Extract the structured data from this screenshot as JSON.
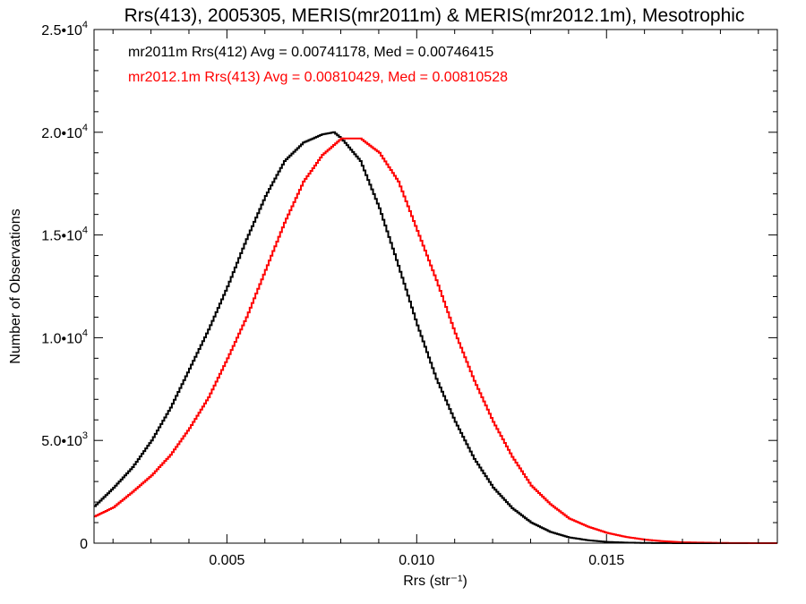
{
  "chart_data": {
    "type": "line",
    "title": "Rrs(413), 2005305, MERIS(mr2011m) & MERIS(mr2012.1m), Mesotrophic",
    "xlabel": "Rrs (str⁻¹)",
    "ylabel": "Number of Observations",
    "xlim": [
      0.0015,
      0.0195
    ],
    "ylim": [
      0,
      25000
    ],
    "x_ticks": [
      {
        "value": 0.005,
        "label": "0.005"
      },
      {
        "value": 0.01,
        "label": "0.010"
      },
      {
        "value": 0.015,
        "label": "0.015"
      }
    ],
    "y_ticks": [
      {
        "value": 0,
        "label": "0",
        "exp": ""
      },
      {
        "value": 5000,
        "label": "5.0•10",
        "exp": "3"
      },
      {
        "value": 10000,
        "label": "1.0•10",
        "exp": "4"
      },
      {
        "value": 15000,
        "label": "1.5•10",
        "exp": "4"
      },
      {
        "value": 20000,
        "label": "2.0•10",
        "exp": "4"
      },
      {
        "value": 25000,
        "label": "2.5•10",
        "exp": "4"
      }
    ],
    "grid": false,
    "legend_position": "top-left",
    "series": [
      {
        "name": "mr2011m Rrs(412) Avg = 0.00741178, Med = 0.00746415",
        "color": "#000000",
        "x": [
          0.0015,
          0.002,
          0.0025,
          0.003,
          0.0035,
          0.004,
          0.0045,
          0.005,
          0.0055,
          0.006,
          0.0065,
          0.007,
          0.0075,
          0.0078,
          0.008,
          0.0085,
          0.009,
          0.0095,
          0.01,
          0.0105,
          0.011,
          0.0115,
          0.012,
          0.0125,
          0.013,
          0.0135,
          0.014,
          0.0145,
          0.015,
          0.0155,
          0.016,
          0.0165,
          0.017,
          0.018,
          0.019,
          0.0195
        ],
        "values": [
          1800,
          2700,
          3700,
          5000,
          6600,
          8500,
          10400,
          12500,
          14800,
          16900,
          18600,
          19500,
          19900,
          20000,
          19700,
          18600,
          16300,
          13500,
          10600,
          8000,
          5900,
          4100,
          2700,
          1700,
          1000,
          550,
          280,
          140,
          60,
          25,
          10,
          5,
          0,
          0,
          0,
          0
        ]
      },
      {
        "name": "mr2012.1m Rrs(413) Avg = 0.00810429, Med = 0.00810528",
        "color": "#ff0000",
        "x": [
          0.0015,
          0.002,
          0.0025,
          0.003,
          0.0035,
          0.004,
          0.0045,
          0.005,
          0.0055,
          0.006,
          0.0065,
          0.007,
          0.0075,
          0.008,
          0.0085,
          0.009,
          0.0095,
          0.01,
          0.0105,
          0.011,
          0.0115,
          0.012,
          0.0125,
          0.013,
          0.0135,
          0.014,
          0.0145,
          0.015,
          0.0155,
          0.016,
          0.0165,
          0.017,
          0.018,
          0.019,
          0.0195
        ],
        "values": [
          1300,
          1750,
          2500,
          3300,
          4300,
          5600,
          7100,
          9000,
          11000,
          13300,
          15600,
          17600,
          18900,
          19700,
          19700,
          19000,
          17600,
          15200,
          12800,
          10200,
          7900,
          5900,
          4200,
          2800,
          1900,
          1200,
          800,
          500,
          300,
          170,
          90,
          40,
          10,
          0,
          0
        ]
      }
    ]
  }
}
